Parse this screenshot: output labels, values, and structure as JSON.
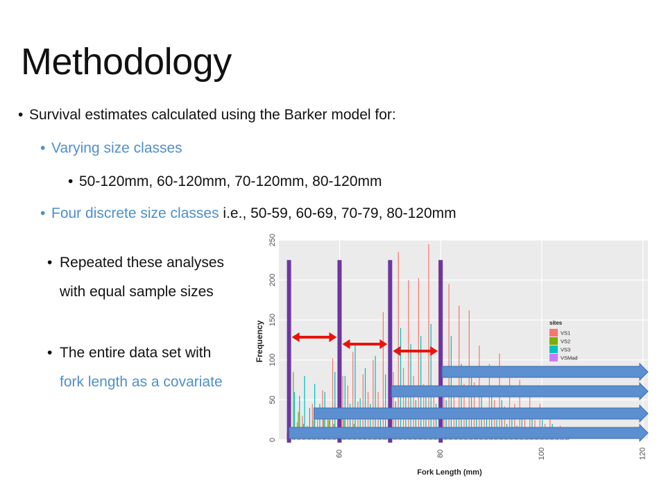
{
  "slide": {
    "title": "Methodology",
    "bullets": {
      "b1": "Survival estimates calculated using the Barker model for:",
      "b2": "Varying size classes",
      "b3": "50-120mm, 60-120mm, 70-120mm, 80-120mm",
      "b4_blue": "Four discrete size classes",
      "b4_rest": " i.e., 50-59, 60-69, 70-79, 80-120mm"
    },
    "side_bullets": {
      "s1": "Repeated these analyses with equal sample sizes",
      "s2_a": "The entire data set with ",
      "s2_blue": "fork length as a covariate"
    },
    "bullet_glyph": "•"
  },
  "chart_data": {
    "type": "bar",
    "xlabel": "Fork Length (mm)",
    "ylabel": "Frequency",
    "xticks": [
      "60",
      "80",
      "100",
      "120"
    ],
    "yticks": [
      "0",
      "50",
      "100",
      "150",
      "200",
      "250"
    ],
    "xlim": [
      48,
      121
    ],
    "ylim": [
      0,
      250
    ],
    "legend": {
      "title": "sites",
      "position": "right",
      "entries": [
        "VS1",
        "VS2",
        "VS3",
        "VSMad"
      ]
    },
    "colors": {
      "VS1": "#f8766d",
      "VS2": "#7cae00",
      "VS3": "#00bfc4",
      "VSMad": "#c77cff"
    },
    "x": [
      50,
      51,
      52,
      53,
      54,
      55,
      56,
      57,
      58,
      59,
      60,
      61,
      62,
      63,
      64,
      65,
      66,
      67,
      68,
      69,
      70,
      71,
      72,
      73,
      74,
      75,
      76,
      77,
      78,
      79,
      80,
      81,
      82,
      83,
      84,
      85,
      86,
      87,
      88,
      89,
      90,
      91,
      92,
      93,
      94,
      95,
      96,
      97,
      98,
      99,
      100,
      101,
      102,
      103,
      104,
      105
    ],
    "series": [
      {
        "name": "VS1",
        "values": [
          8,
          12,
          22,
          30,
          18,
          45,
          30,
          62,
          40,
          102,
          30,
          80,
          68,
          110,
          48,
          82,
          60,
          100,
          60,
          160,
          40,
          85,
          235,
          90,
          200,
          80,
          202,
          70,
          245,
          60,
          225,
          55,
          195,
          60,
          168,
          70,
          162,
          72,
          118,
          40,
          95,
          50,
          108,
          42,
          80,
          45,
          75,
          40,
          60,
          25,
          45,
          20,
          28,
          15,
          18,
          12
        ]
      },
      {
        "name": "VS2",
        "values": [
          0,
          85,
          35,
          20,
          15,
          25,
          10,
          30,
          25,
          20,
          15,
          25,
          10,
          20,
          15,
          15,
          10,
          15,
          10,
          10,
          8,
          10,
          12,
          10,
          12,
          15,
          10,
          12,
          15,
          10,
          8,
          10,
          8,
          10,
          8,
          8,
          8,
          6,
          6,
          6,
          6,
          6,
          5,
          5,
          4,
          4,
          4,
          3,
          3,
          2,
          2,
          2,
          2,
          1,
          1,
          1
        ]
      },
      {
        "name": "VS3",
        "values": [
          0,
          60,
          55,
          80,
          40,
          70,
          45,
          60,
          30,
          85,
          25,
          80,
          45,
          120,
          52,
          90,
          45,
          105,
          40,
          82,
          35,
          48,
          140,
          60,
          120,
          50,
          130,
          55,
          145,
          45,
          125,
          50,
          130,
          40,
          95,
          38,
          80,
          35,
          65,
          28,
          55,
          25,
          50,
          20,
          40,
          18,
          35,
          15,
          30,
          12,
          25,
          10,
          20,
          8,
          12,
          6
        ]
      },
      {
        "name": "VSMad",
        "values": [
          5,
          5,
          5,
          5,
          5,
          5,
          5,
          5,
          5,
          5,
          5,
          5,
          5,
          5,
          5,
          5,
          5,
          5,
          5,
          5,
          5,
          5,
          5,
          5,
          5,
          5,
          5,
          5,
          5,
          5,
          5,
          5,
          5,
          5,
          5,
          5,
          5,
          5,
          5,
          5,
          5,
          5,
          5,
          5,
          5,
          5,
          5,
          5,
          5,
          5,
          5,
          5,
          5,
          5,
          5,
          5
        ]
      }
    ],
    "annotations": {
      "cutoffs_mm": [
        50,
        60,
        70,
        80
      ],
      "cutoff_color": "#6d36a2",
      "range_arrows_mm": [
        [
          50,
          60
        ],
        [
          60,
          70
        ],
        [
          70,
          80
        ]
      ],
      "range_arrow_color": "#e8140a",
      "forward_arrows_from_mm": [
        80,
        70,
        50,
        50
      ],
      "forward_arrow_color": "#5b8fd0"
    }
  }
}
